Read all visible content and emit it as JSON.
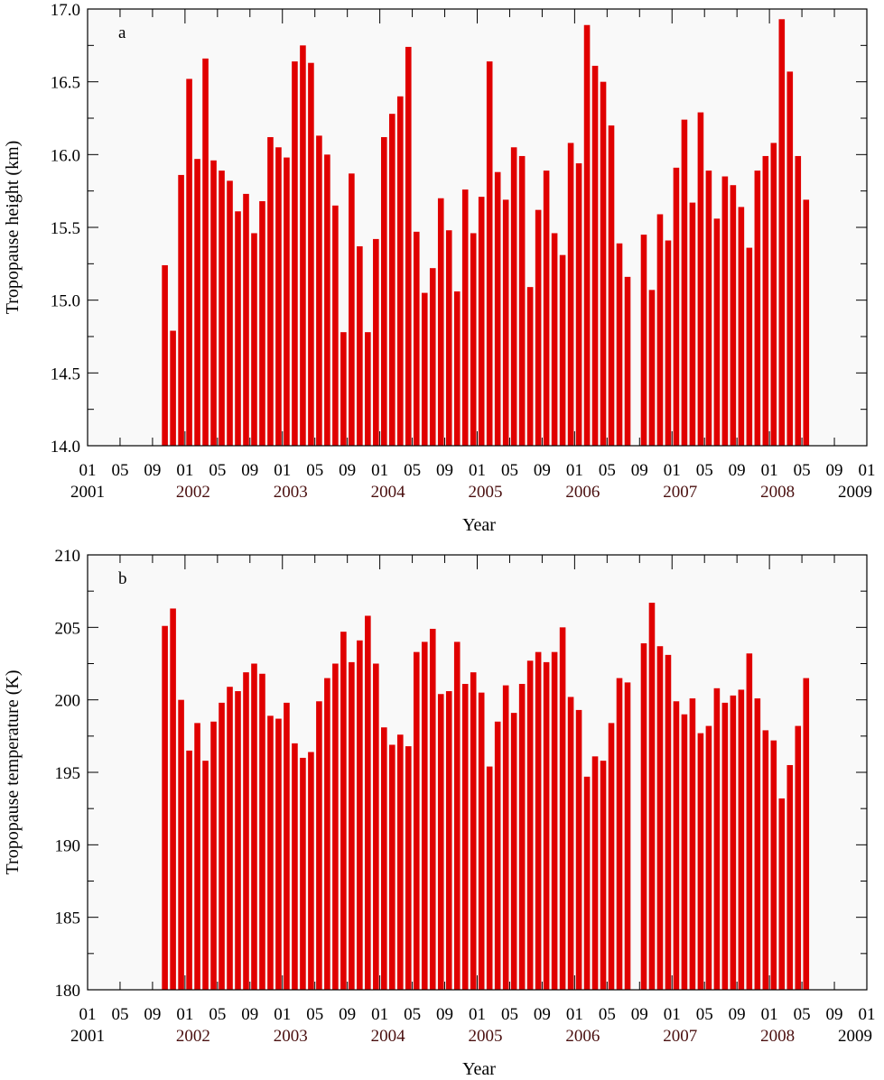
{
  "chart_data": [
    {
      "type": "bar",
      "panel_label": "a",
      "xlabel": "Year",
      "ylabel": "Tropopause height (km)",
      "ylim": [
        14.0,
        17.0
      ],
      "yticks": [
        "14.0",
        "14.5",
        "15.0",
        "15.5",
        "16.0",
        "16.5",
        "17.0"
      ],
      "xlim": [
        "2001-01",
        "2009-01"
      ],
      "x_month_ticks": [
        "01",
        "05",
        "09",
        "01",
        "05",
        "09",
        "01",
        "05",
        "09",
        "01",
        "05",
        "09",
        "01",
        "05",
        "09",
        "01",
        "05",
        "09",
        "01",
        "05",
        "09",
        "01",
        "05",
        "09",
        "01"
      ],
      "year_labels": [
        "2001",
        "2002",
        "2003",
        "2004",
        "2005",
        "2006",
        "2007",
        "2008",
        "2009"
      ],
      "bar_color": "#e00000",
      "start_month": "2001-10",
      "values": [
        15.24,
        14.79,
        15.86,
        16.52,
        15.97,
        16.66,
        15.96,
        15.89,
        15.82,
        15.61,
        15.73,
        15.46,
        15.68,
        16.12,
        16.05,
        15.98,
        16.64,
        16.75,
        16.63,
        16.13,
        16.0,
        15.65,
        14.78,
        15.87,
        15.37,
        14.78,
        15.42,
        16.12,
        16.28,
        16.4,
        16.74,
        15.47,
        15.05,
        15.22,
        15.7,
        15.48,
        15.06,
        15.76,
        15.46,
        15.71,
        16.64,
        15.88,
        15.69,
        16.05,
        15.99,
        15.09,
        15.62,
        15.89,
        15.46,
        15.31,
        16.08,
        15.94,
        16.89,
        16.61,
        16.5,
        16.2,
        15.39,
        15.16,
        null,
        15.45,
        15.07,
        15.59,
        15.41,
        15.91,
        16.24,
        15.67,
        16.29,
        15.89,
        15.56,
        15.85,
        15.79,
        15.64,
        15.36,
        15.89,
        15.99,
        16.08,
        16.93,
        16.57,
        15.99,
        15.69
      ]
    },
    {
      "type": "bar",
      "panel_label": "b",
      "xlabel": "Year",
      "ylabel": "Tropopause temperature (K)",
      "ylim": [
        180,
        210
      ],
      "yticks": [
        "180",
        "185",
        "190",
        "195",
        "200",
        "205",
        "210"
      ],
      "xlim": [
        "2001-01",
        "2009-01"
      ],
      "x_month_ticks": [
        "01",
        "05",
        "09",
        "01",
        "05",
        "09",
        "01",
        "05",
        "09",
        "01",
        "05",
        "09",
        "01",
        "05",
        "09",
        "01",
        "05",
        "09",
        "01",
        "05",
        "09",
        "01",
        "05",
        "09",
        "01"
      ],
      "year_labels": [
        "2001",
        "2002",
        "2003",
        "2004",
        "2005",
        "2006",
        "2007",
        "2008",
        "2009"
      ],
      "bar_color": "#e00000",
      "start_month": "2001-10",
      "values": [
        205.1,
        206.3,
        200.0,
        196.5,
        198.4,
        195.8,
        198.5,
        199.8,
        200.9,
        200.6,
        201.9,
        202.5,
        201.8,
        198.9,
        198.7,
        199.8,
        197.0,
        196.0,
        196.4,
        199.9,
        201.5,
        202.5,
        204.7,
        202.6,
        204.1,
        205.8,
        202.5,
        198.1,
        196.9,
        197.6,
        196.8,
        203.3,
        204.0,
        204.9,
        200.4,
        200.6,
        204.0,
        201.1,
        201.9,
        200.5,
        195.4,
        198.5,
        201.0,
        199.1,
        201.1,
        202.7,
        203.3,
        202.6,
        203.3,
        205.0,
        200.2,
        199.3,
        194.7,
        196.1,
        195.8,
        198.4,
        201.5,
        201.2,
        null,
        203.9,
        206.7,
        203.7,
        203.1,
        199.9,
        199.0,
        200.1,
        197.7,
        198.2,
        200.8,
        199.8,
        200.3,
        200.7,
        203.2,
        200.1,
        197.9,
        197.2,
        193.2,
        195.5,
        198.2,
        201.5
      ]
    }
  ]
}
